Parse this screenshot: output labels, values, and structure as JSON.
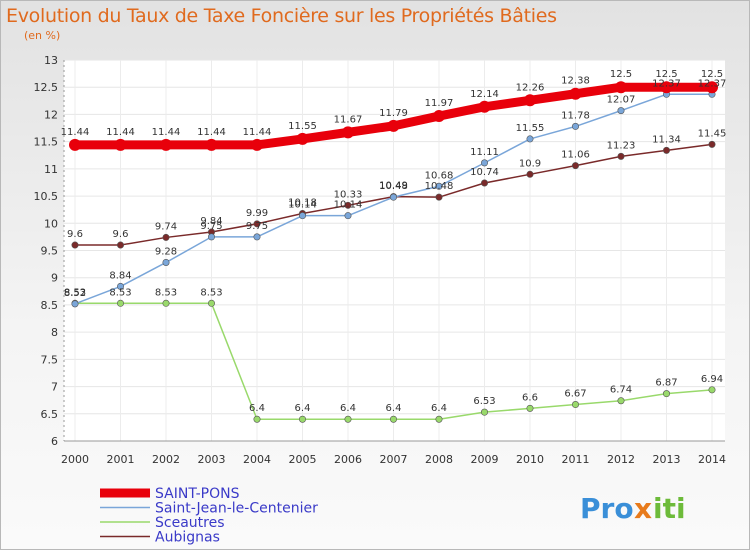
{
  "chart_data": {
    "type": "line",
    "title": "Evolution du Taux de Taxe Foncière sur les Propriétés Bâties",
    "unit_label": "(en %)",
    "x": [
      "2000",
      "2001",
      "2002",
      "2003",
      "2004",
      "2005",
      "2006",
      "2007",
      "2008",
      "2009",
      "2010",
      "2011",
      "2012",
      "2013",
      "2014"
    ],
    "ylim": [
      6,
      13
    ],
    "yticks": [
      "6",
      "6.5",
      "7",
      "7.5",
      "8",
      "8.5",
      "9",
      "9.5",
      "10",
      "10.5",
      "11",
      "11.5",
      "12",
      "12.5",
      "13"
    ],
    "series": [
      {
        "name": "SAINT-PONS",
        "color": "#e8000b",
        "values": [
          11.44,
          11.44,
          11.44,
          11.44,
          11.44,
          11.55,
          11.67,
          11.79,
          11.97,
          12.14,
          12.26,
          12.38,
          12.5,
          12.5,
          12.5
        ],
        "labels": [
          "11.44",
          "11.44",
          "11.44",
          "11.44",
          "11.44",
          "11.55",
          "11.67",
          "11.79",
          "11.97",
          "12.14",
          "12.26",
          "12.38",
          "12.5",
          "12.5",
          "12.5"
        ]
      },
      {
        "name": "Saint-Jean-le-Centenier",
        "color": "#7aa6d9",
        "values": [
          8.52,
          8.84,
          9.28,
          9.75,
          9.75,
          10.14,
          10.14,
          10.48,
          10.68,
          11.11,
          11.55,
          11.78,
          12.07,
          12.37,
          12.37
        ],
        "labels": [
          "8.52",
          "8.84",
          "9.28",
          "9.75",
          "9.75",
          "10.14",
          "10.14",
          "10.48",
          "10.68",
          "11.11",
          "11.55",
          "11.78",
          "12.07",
          "12.37",
          "12.37"
        ]
      },
      {
        "name": "Sceautres",
        "color": "#99d96b",
        "values": [
          8.53,
          8.53,
          8.53,
          8.53,
          6.4,
          6.4,
          6.4,
          6.4,
          6.4,
          6.53,
          6.6,
          6.67,
          6.74,
          6.87,
          6.94
        ],
        "labels": [
          "8.53",
          "8.53",
          "8.53",
          "8.53",
          "6.4",
          "6.4",
          "6.4",
          "6.4",
          "6.4",
          "6.53",
          "6.6",
          "6.67",
          "6.74",
          "6.87",
          "6.94"
        ]
      },
      {
        "name": "Aubignas",
        "color": "#7a2a2a",
        "values": [
          9.6,
          9.6,
          9.74,
          9.84,
          9.99,
          10.18,
          10.33,
          10.49,
          10.48,
          10.74,
          10.9,
          11.06,
          11.23,
          11.34,
          11.45
        ],
        "labels": [
          "9.6",
          "9.6",
          "9.74",
          "9.84",
          "9.99",
          "10.18",
          "10.33",
          "10.49",
          "10.48",
          "10.74",
          "10.9",
          "11.06",
          "11.23",
          "11.34",
          "11.45"
        ]
      }
    ],
    "legend": [
      "SAINT-PONS",
      "Saint-Jean-le-Centenier",
      "Sceautres",
      "Aubignas"
    ],
    "logo": "Proxiti"
  }
}
